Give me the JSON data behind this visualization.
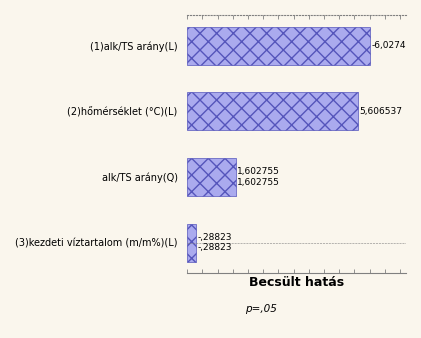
{
  "categories": [
    "(3)kezdeti víztartalom (m/m%)(L)",
    "alk/TS arány(Q)",
    "(2)hőmérséklet (°C)(L)",
    "(1)alk/TS arány(L)"
  ],
  "values": [
    0.28823,
    1.602755,
    5.606537,
    6.0274
  ],
  "value_labels": [
    "-,28823\n-,28823",
    "1,602755\n1,602755",
    "5,606537",
    "-6,0274"
  ],
  "bar_color": "#aaaaee",
  "hatch": "xx",
  "xlabel": "Becsült hatás",
  "p_label": "p=,05",
  "xlim": [
    0,
    7.2
  ],
  "background_color": "#faf6ed",
  "bar_height": 0.58,
  "figsize": [
    4.21,
    3.38
  ],
  "dpi": 100,
  "label_fontsize": 6.5,
  "xlabel_fontsize": 9,
  "ytick_fontsize": 7.0
}
